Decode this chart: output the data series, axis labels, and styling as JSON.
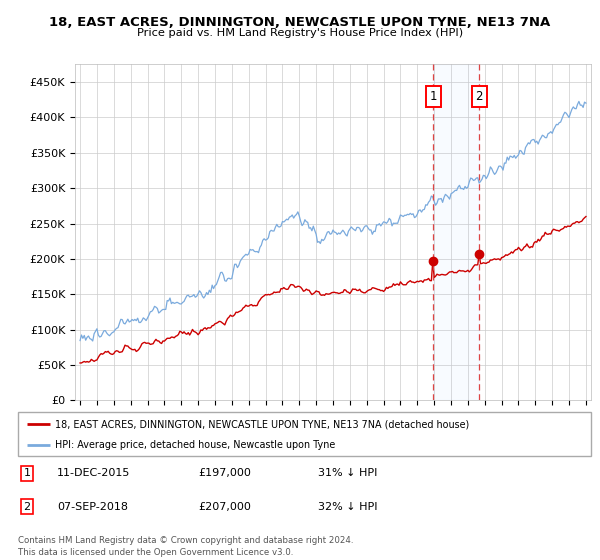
{
  "title": "18, EAST ACRES, DINNINGTON, NEWCASTLE UPON TYNE, NE13 7NA",
  "subtitle": "Price paid vs. HM Land Registry's House Price Index (HPI)",
  "yticks": [
    0,
    50000,
    100000,
    150000,
    200000,
    250000,
    300000,
    350000,
    400000,
    450000
  ],
  "ytick_labels": [
    "£0",
    "£50K",
    "£100K",
    "£150K",
    "£200K",
    "£250K",
    "£300K",
    "£350K",
    "£400K",
    "£450K"
  ],
  "ylim": [
    0,
    475000
  ],
  "xlim": [
    1994.7,
    2025.3
  ],
  "vline1_x": 2015.95,
  "vline2_x": 2018.67,
  "purchase1_year": 2015.95,
  "purchase1_price": 197000,
  "purchase2_year": 2018.67,
  "purchase2_price": 207000,
  "legend_line1": "18, EAST ACRES, DINNINGTON, NEWCASTLE UPON TYNE, NE13 7NA (detached house)",
  "legend_line2": "HPI: Average price, detached house, Newcastle upon Tyne",
  "footer": "Contains HM Land Registry data © Crown copyright and database right 2024.\nThis data is licensed under the Open Government Licence v3.0.",
  "prop_color": "#cc0000",
  "hpi_color": "#7aaadd",
  "grid_color": "#cccccc",
  "bg_color": "#ffffff",
  "label1_num": "1",
  "label2_num": "2",
  "date1": "11-DEC-2015",
  "price1_str": "£197,000",
  "pct1_str": "31% ↓ HPI",
  "date2": "07-SEP-2018",
  "price2_str": "£207,000",
  "pct2_str": "32% ↓ HPI"
}
